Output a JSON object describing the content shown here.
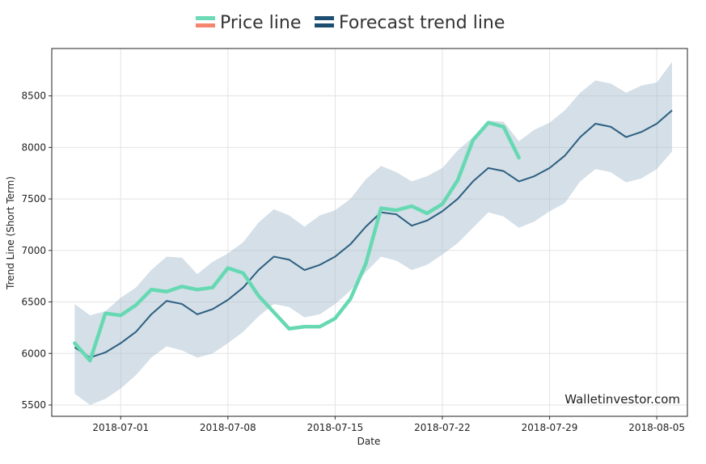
{
  "chart_data": {
    "type": "line",
    "title": "",
    "xlabel": "Date",
    "ylabel": "Trend Line (Short Term)",
    "watermark": "Walletinvestor.com",
    "grid": true,
    "legend_position": "top-center",
    "x_start": "2018-06-28",
    "xlim_days": [
      -1.5,
      40.0
    ],
    "ylim": [
      5390,
      8960
    ],
    "y_ticks": [
      5500,
      6000,
      6500,
      7000,
      7500,
      8000,
      8500
    ],
    "x_ticks": [
      {
        "day": 3,
        "label": "2018-07-01"
      },
      {
        "day": 10,
        "label": "2018-07-08"
      },
      {
        "day": 17,
        "label": "2018-07-15"
      },
      {
        "day": 24,
        "label": "2018-07-22"
      },
      {
        "day": 31,
        "label": "2018-07-29"
      },
      {
        "day": 38,
        "label": "2018-08-05"
      }
    ],
    "legend": [
      {
        "label": "Price line",
        "color_top": "#6cdab5",
        "color_bottom": "#f4866f"
      },
      {
        "label": "Forecast trend line",
        "color_top": "#1d4e72",
        "color_bottom": "#1d4e72"
      }
    ],
    "series": [
      {
        "name": "Price line",
        "color": "#66d9b3",
        "values": [
          6100,
          5930,
          6390,
          6370,
          6470,
          6620,
          6600,
          6650,
          6620,
          6640,
          6830,
          6780,
          6560,
          6400,
          6240,
          6260,
          6260,
          6340,
          6530,
          6870,
          7410,
          7390,
          7430,
          7360,
          7450,
          7680,
          8070,
          8240,
          8200,
          7900
        ]
      },
      {
        "name": "Forecast trend line",
        "color": "#2c5f80",
        "values": [
          6060,
          5960,
          6010,
          6100,
          6210,
          6380,
          6510,
          6480,
          6380,
          6430,
          6520,
          6640,
          6810,
          6940,
          6910,
          6810,
          6860,
          6940,
          7060,
          7230,
          7370,
          7350,
          7240,
          7290,
          7380,
          7500,
          7670,
          7800,
          7770,
          7670,
          7720,
          7800,
          7920,
          8100,
          8230,
          8200,
          8100,
          8150,
          8230,
          8360
        ]
      }
    ],
    "band": {
      "name": "Forecast range",
      "color": "#9fb7c9",
      "upper": [
        6480,
        6370,
        6410,
        6540,
        6640,
        6810,
        6940,
        6930,
        6770,
        6890,
        6970,
        7080,
        7270,
        7400,
        7340,
        7230,
        7340,
        7390,
        7500,
        7690,
        7820,
        7760,
        7670,
        7720,
        7800,
        7970,
        8100,
        8260,
        8250,
        8060,
        8170,
        8240,
        8360,
        8530,
        8650,
        8620,
        8530,
        8600,
        8630,
        8830
      ],
      "lower": [
        5610,
        5500,
        5560,
        5660,
        5790,
        5960,
        6070,
        6030,
        5960,
        6000,
        6100,
        6210,
        6360,
        6480,
        6450,
        6350,
        6380,
        6480,
        6610,
        6790,
        6940,
        6900,
        6810,
        6860,
        6960,
        7070,
        7220,
        7370,
        7330,
        7220,
        7280,
        7380,
        7460,
        7670,
        7790,
        7760,
        7660,
        7700,
        7790,
        7960
      ]
    }
  }
}
